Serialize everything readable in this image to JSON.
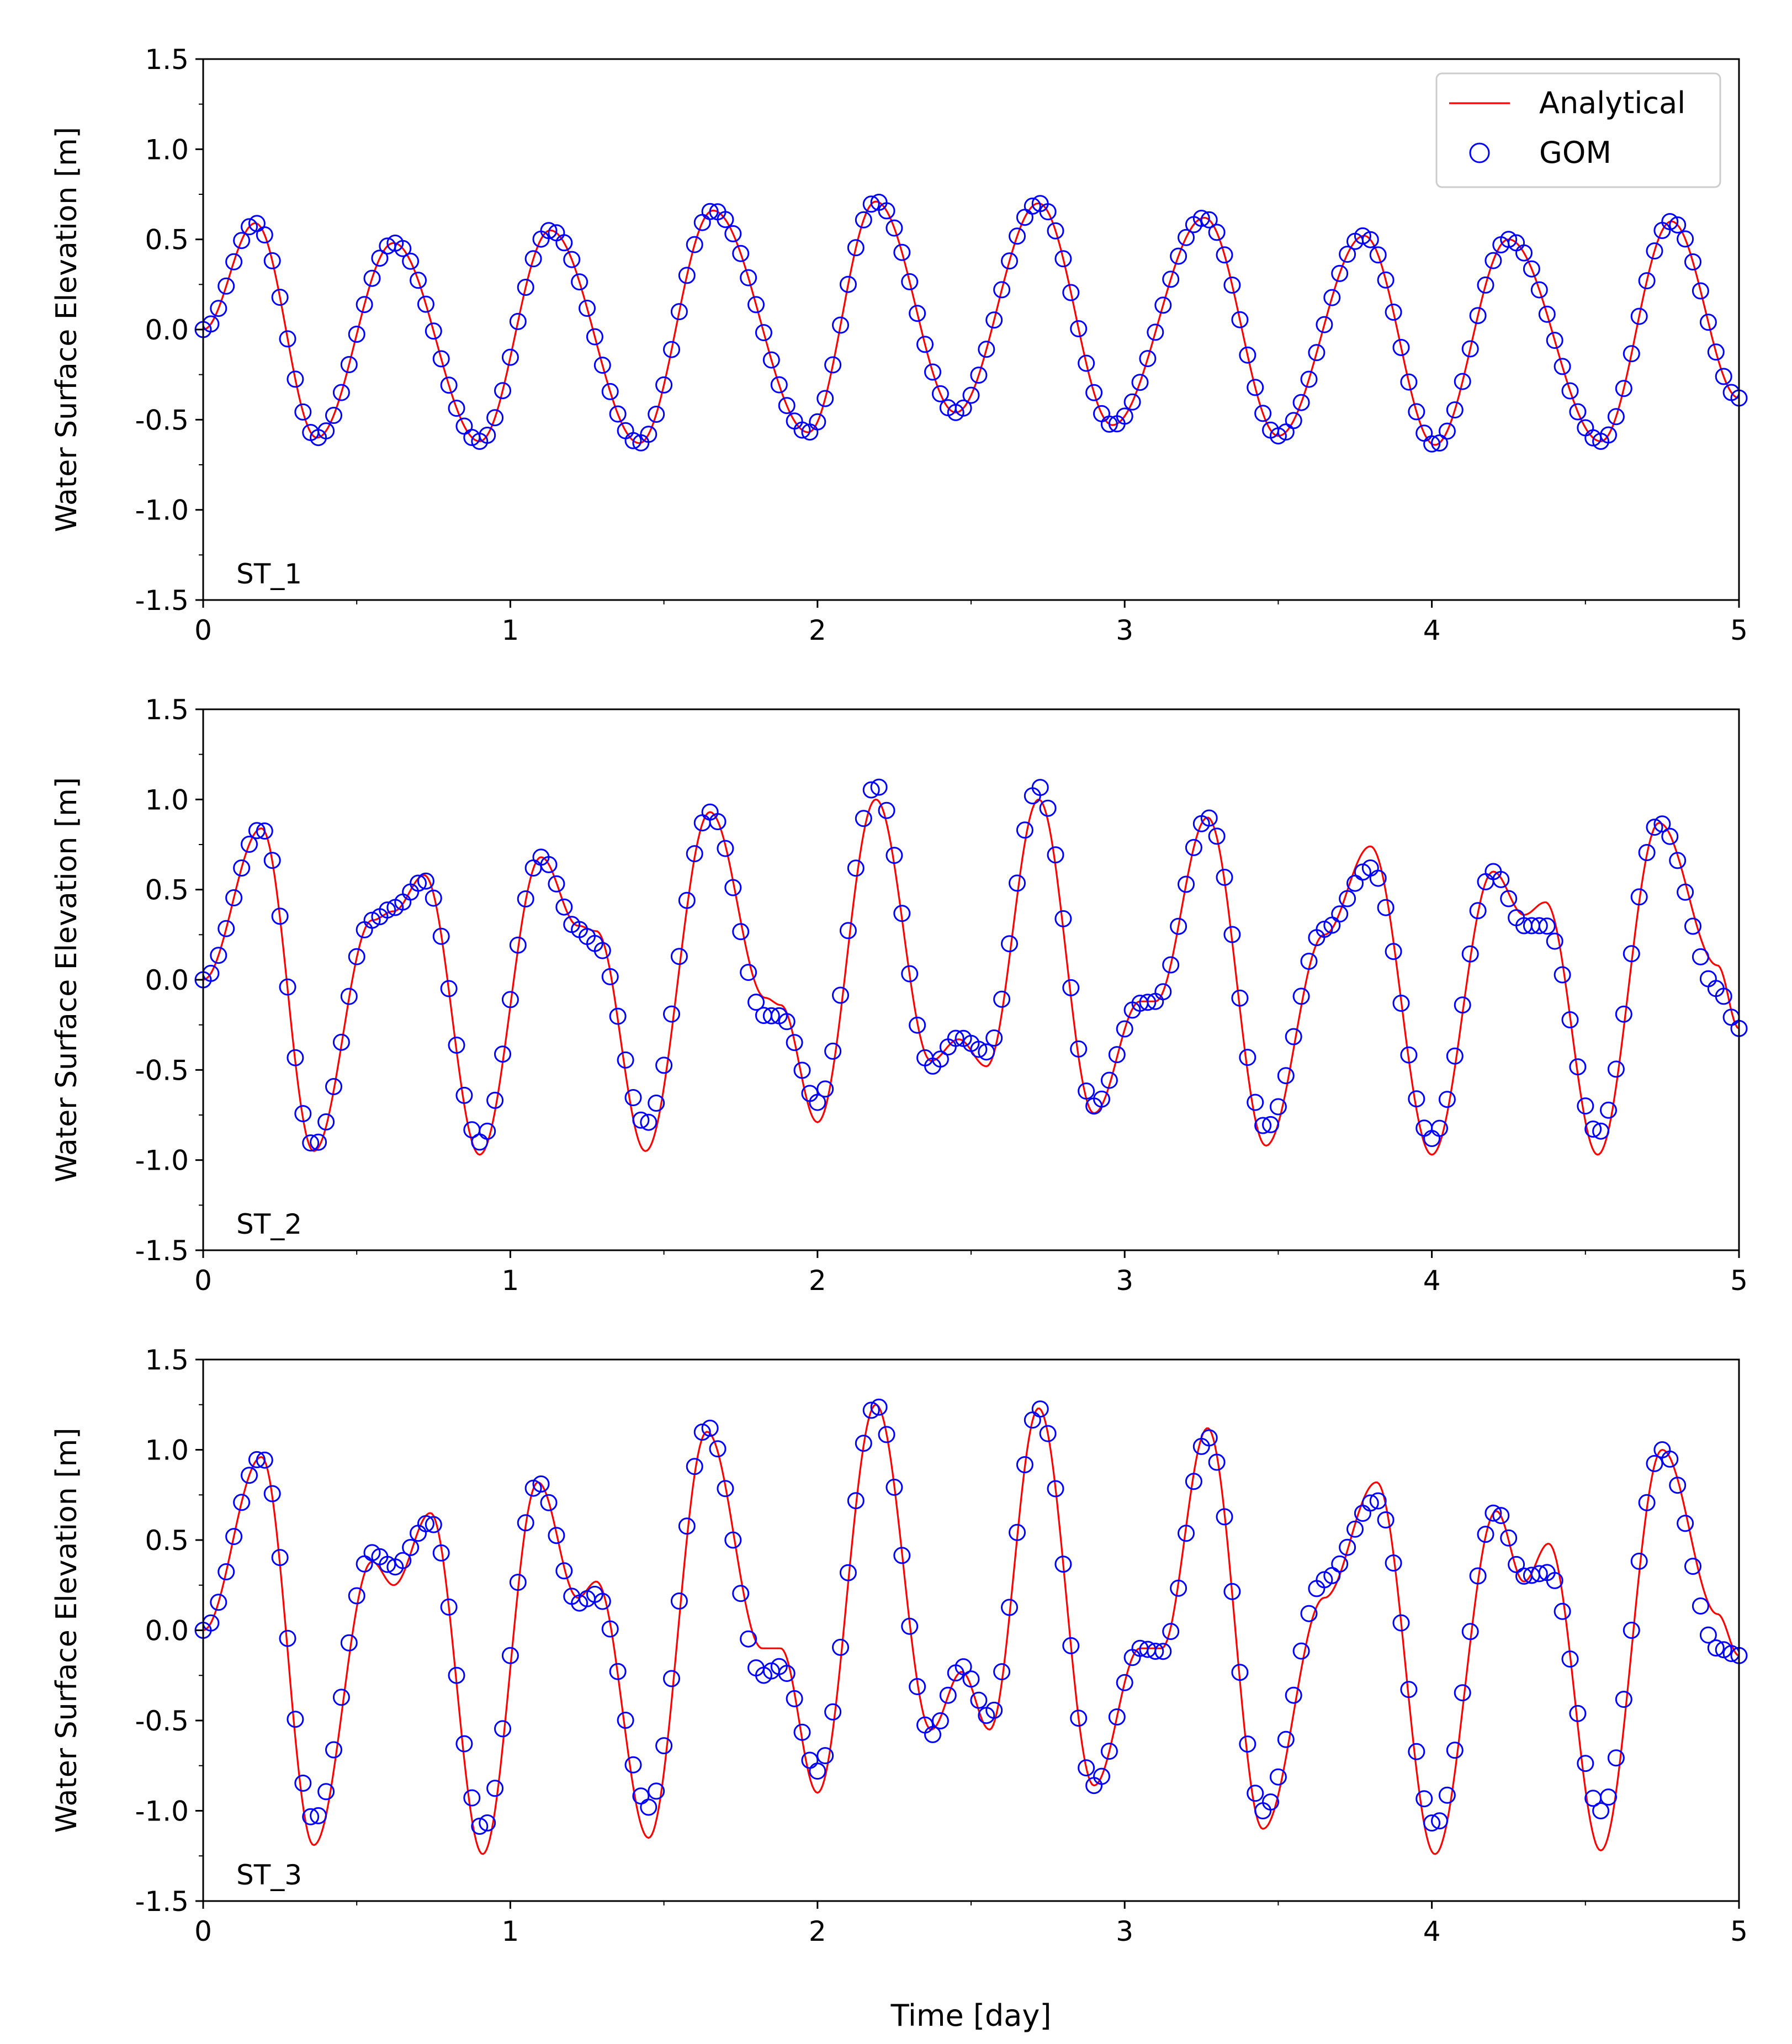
{
  "figure": {
    "xlabel": "Time [day]",
    "legend": {
      "placement": "top-right",
      "entries": [
        "Analytical",
        "GOM"
      ]
    }
  },
  "colors": {
    "analytical": "#ff0000",
    "gom": "#0000ff",
    "axis": "#000000"
  },
  "chart_data": [
    {
      "type": "line",
      "annotation": "ST_1",
      "ylabel": "Water Surface Elevation [m]",
      "xlabel": "",
      "xlim": [
        0,
        5
      ],
      "ylim": [
        -1.5,
        1.5
      ],
      "xticks": [
        "0",
        "1",
        "2",
        "3",
        "4",
        "5"
      ],
      "yticks": [
        "-1.5",
        "-1.0",
        "-0.5",
        "0.0",
        "0.5",
        "1.0",
        "1.5"
      ],
      "grid": false,
      "legend": "top-right",
      "series": [
        {
          "name": "Analytical",
          "kind": "line",
          "key_points": [
            [
              0,
              0.0
            ],
            [
              0.17,
              0.59
            ],
            [
              0.37,
              -0.6
            ],
            [
              0.62,
              0.48
            ],
            [
              0.9,
              -0.62
            ],
            [
              1.13,
              0.55
            ],
            [
              1.42,
              -0.63
            ],
            [
              1.66,
              0.66
            ],
            [
              1.97,
              -0.57
            ],
            [
              2.19,
              0.71
            ],
            [
              2.45,
              -0.46
            ],
            [
              2.72,
              0.7
            ],
            [
              2.96,
              -0.53
            ],
            [
              3.26,
              0.62
            ],
            [
              3.5,
              -0.59
            ],
            [
              3.78,
              0.52
            ],
            [
              4.01,
              -0.64
            ],
            [
              4.25,
              0.5
            ],
            [
              4.55,
              -0.62
            ],
            [
              4.78,
              0.6
            ],
            [
              5,
              -0.38
            ]
          ]
        },
        {
          "name": "GOM",
          "kind": "scatter",
          "key_points": [
            [
              0,
              0.0
            ],
            [
              0.17,
              0.59
            ],
            [
              0.37,
              -0.6
            ],
            [
              0.62,
              0.48
            ],
            [
              0.9,
              -0.62
            ],
            [
              1.13,
              0.55
            ],
            [
              1.42,
              -0.63
            ],
            [
              1.66,
              0.66
            ],
            [
              1.97,
              -0.57
            ],
            [
              2.19,
              0.71
            ],
            [
              2.45,
              -0.46
            ],
            [
              2.72,
              0.7
            ],
            [
              2.96,
              -0.53
            ],
            [
              3.26,
              0.62
            ],
            [
              3.5,
              -0.59
            ],
            [
              3.78,
              0.52
            ],
            [
              4.01,
              -0.64
            ],
            [
              4.25,
              0.5
            ],
            [
              4.55,
              -0.62
            ],
            [
              4.78,
              0.6
            ],
            [
              5,
              -0.38
            ]
          ]
        }
      ]
    },
    {
      "type": "line",
      "annotation": "ST_2",
      "ylabel": "Water Surface Elevation [m]",
      "xlabel": "",
      "xlim": [
        0,
        5
      ],
      "ylim": [
        -1.5,
        1.5
      ],
      "xticks": [
        "0",
        "1",
        "2",
        "3",
        "4",
        "5"
      ],
      "yticks": [
        "-1.5",
        "-1.0",
        "-0.5",
        "0.0",
        "0.5",
        "1.0",
        "1.5"
      ],
      "grid": false,
      "legend": "none",
      "series": [
        {
          "name": "Analytical",
          "kind": "line",
          "key_points": [
            [
              0,
              0.0
            ],
            [
              0.19,
              0.84
            ],
            [
              0.36,
              -0.95
            ],
            [
              0.55,
              0.33
            ],
            [
              0.62,
              0.38
            ],
            [
              0.72,
              0.58
            ],
            [
              0.9,
              -0.97
            ],
            [
              1.1,
              0.68
            ],
            [
              1.22,
              0.3
            ],
            [
              1.28,
              0.27
            ],
            [
              1.44,
              -0.95
            ],
            [
              1.65,
              0.93
            ],
            [
              1.83,
              -0.1
            ],
            [
              1.88,
              -0.14
            ],
            [
              2.0,
              -0.79
            ],
            [
              2.19,
              1.0
            ],
            [
              2.37,
              -0.45
            ],
            [
              2.46,
              -0.33
            ],
            [
              2.55,
              -0.48
            ],
            [
              2.72,
              1.0
            ],
            [
              2.9,
              -0.74
            ],
            [
              3.05,
              -0.12
            ],
            [
              3.1,
              -0.12
            ],
            [
              3.27,
              0.9
            ],
            [
              3.46,
              -0.92
            ],
            [
              3.65,
              0.25
            ],
            [
              3.8,
              0.74
            ],
            [
              4.0,
              -0.97
            ],
            [
              4.2,
              0.6
            ],
            [
              4.3,
              0.36
            ],
            [
              4.37,
              0.43
            ],
            [
              4.54,
              -0.97
            ],
            [
              4.74,
              0.87
            ],
            [
              4.93,
              0.08
            ],
            [
              5,
              -0.27
            ]
          ]
        },
        {
          "name": "GOM",
          "kind": "scatter",
          "key_points": [
            [
              0,
              0.0
            ],
            [
              0.19,
              0.84
            ],
            [
              0.36,
              -0.92
            ],
            [
              0.55,
              0.33
            ],
            [
              0.62,
              0.4
            ],
            [
              0.72,
              0.55
            ],
            [
              0.9,
              -0.9
            ],
            [
              1.1,
              0.68
            ],
            [
              1.22,
              0.28
            ],
            [
              1.28,
              0.2
            ],
            [
              1.44,
              -0.8
            ],
            [
              1.65,
              0.93
            ],
            [
              1.83,
              -0.2
            ],
            [
              1.88,
              -0.2
            ],
            [
              2.0,
              -0.68
            ],
            [
              2.19,
              1.08
            ],
            [
              2.37,
              -0.48
            ],
            [
              2.46,
              -0.32
            ],
            [
              2.55,
              -0.4
            ],
            [
              2.72,
              1.07
            ],
            [
              2.9,
              -0.7
            ],
            [
              3.05,
              -0.13
            ],
            [
              3.1,
              -0.12
            ],
            [
              3.27,
              0.9
            ],
            [
              3.46,
              -0.82
            ],
            [
              3.65,
              0.28
            ],
            [
              3.8,
              0.62
            ],
            [
              4.0,
              -0.88
            ],
            [
              4.2,
              0.6
            ],
            [
              4.3,
              0.3
            ],
            [
              4.37,
              0.3
            ],
            [
              4.54,
              -0.85
            ],
            [
              4.74,
              0.87
            ],
            [
              4.93,
              -0.05
            ],
            [
              5,
              -0.27
            ]
          ]
        }
      ]
    },
    {
      "type": "line",
      "annotation": "ST_3",
      "ylabel": "Water Surface Elevation [m]",
      "xlabel": "Time [day]",
      "xlim": [
        0,
        5
      ],
      "ylim": [
        -1.5,
        1.5
      ],
      "xticks": [
        "0",
        "1",
        "2",
        "3",
        "4",
        "5"
      ],
      "yticks": [
        "-1.5",
        "-1.0",
        "-0.5",
        "0.0",
        "0.5",
        "1.0",
        "1.5"
      ],
      "grid": false,
      "legend": "none",
      "series": [
        {
          "name": "Analytical",
          "kind": "line",
          "key_points": [
            [
              0,
              0.0
            ],
            [
              0.19,
              0.96
            ],
            [
              0.36,
              -1.19
            ],
            [
              0.55,
              0.38
            ],
            [
              0.62,
              0.25
            ],
            [
              0.74,
              0.65
            ],
            [
              0.91,
              -1.24
            ],
            [
              1.09,
              0.82
            ],
            [
              1.22,
              0.18
            ],
            [
              1.28,
              0.27
            ],
            [
              1.45,
              -1.15
            ],
            [
              1.64,
              1.1
            ],
            [
              1.82,
              -0.1
            ],
            [
              1.88,
              -0.1
            ],
            [
              2.0,
              -0.9
            ],
            [
              2.19,
              1.25
            ],
            [
              2.37,
              -0.55
            ],
            [
              2.47,
              -0.23
            ],
            [
              2.56,
              -0.55
            ],
            [
              2.72,
              1.23
            ],
            [
              2.9,
              -0.86
            ],
            [
              3.05,
              -0.1
            ],
            [
              3.12,
              -0.1
            ],
            [
              3.27,
              1.12
            ],
            [
              3.45,
              -1.1
            ],
            [
              3.65,
              0.18
            ],
            [
              3.82,
              0.82
            ],
            [
              4.01,
              -1.24
            ],
            [
              4.21,
              0.66
            ],
            [
              4.3,
              0.27
            ],
            [
              4.38,
              0.48
            ],
            [
              4.55,
              -1.22
            ],
            [
              4.75,
              1.0
            ],
            [
              4.93,
              0.09
            ],
            [
              5,
              -0.14
            ]
          ]
        },
        {
          "name": "GOM",
          "kind": "scatter",
          "key_points": [
            [
              0,
              0.0
            ],
            [
              0.19,
              0.96
            ],
            [
              0.36,
              -1.05
            ],
            [
              0.55,
              0.43
            ],
            [
              0.62,
              0.35
            ],
            [
              0.74,
              0.6
            ],
            [
              0.91,
              -1.1
            ],
            [
              1.09,
              0.82
            ],
            [
              1.22,
              0.15
            ],
            [
              1.28,
              0.2
            ],
            [
              1.45,
              -0.98
            ],
            [
              1.64,
              1.13
            ],
            [
              1.82,
              -0.25
            ],
            [
              1.88,
              -0.2
            ],
            [
              2.0,
              -0.78
            ],
            [
              2.19,
              1.25
            ],
            [
              2.37,
              -0.58
            ],
            [
              2.47,
              -0.2
            ],
            [
              2.56,
              -0.48
            ],
            [
              2.72,
              1.23
            ],
            [
              2.9,
              -0.86
            ],
            [
              3.05,
              -0.1
            ],
            [
              3.12,
              -0.12
            ],
            [
              3.27,
              1.07
            ],
            [
              3.45,
              -1.0
            ],
            [
              3.65,
              0.28
            ],
            [
              3.82,
              0.72
            ],
            [
              4.01,
              -1.08
            ],
            [
              4.21,
              0.66
            ],
            [
              4.3,
              0.3
            ],
            [
              4.38,
              0.32
            ],
            [
              4.55,
              -1.0
            ],
            [
              4.75,
              1.0
            ],
            [
              4.93,
              -0.1
            ],
            [
              5,
              -0.14
            ]
          ]
        }
      ]
    }
  ]
}
